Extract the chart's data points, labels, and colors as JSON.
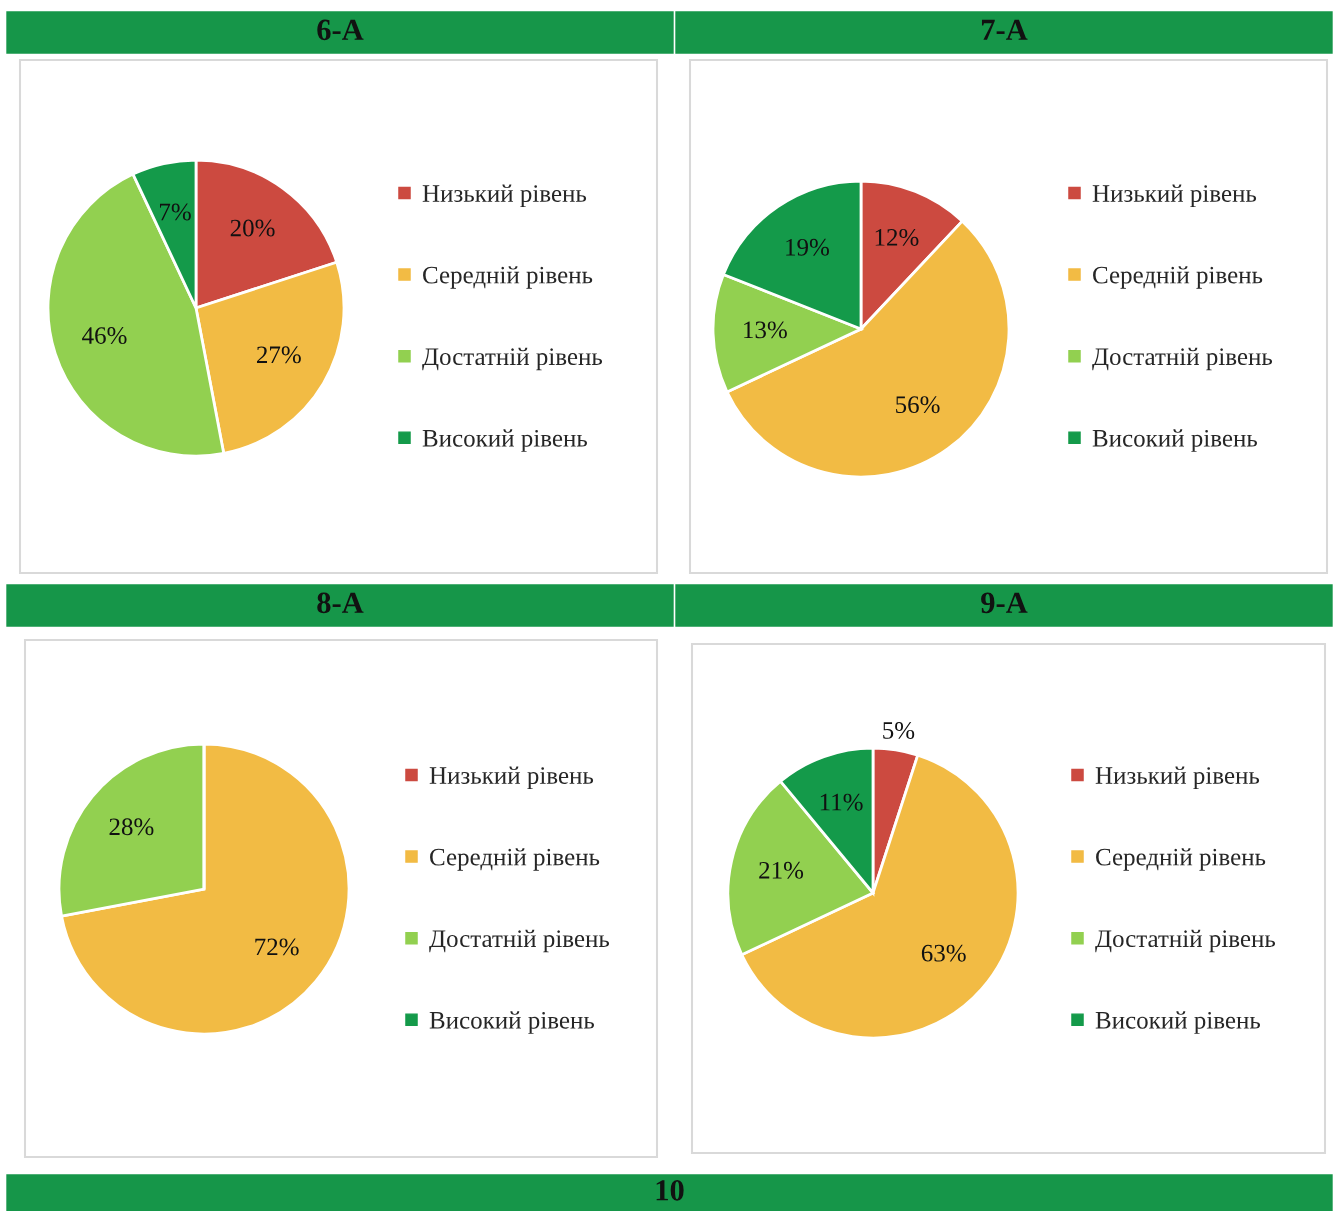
{
  "chart_data": [
    {
      "type": "pie",
      "title": "6-А",
      "categories": [
        "Низький рівень",
        "Середній рівень",
        "Достатній рівень",
        "Високий рівень"
      ],
      "values": [
        20,
        27,
        46,
        7
      ],
      "value_labels": [
        "20%",
        "27%",
        "46%",
        "7%"
      ],
      "colors": [
        "#cc4a40",
        "#f2bb44",
        "#92d050",
        "#149a4a"
      ],
      "legend": "right"
    },
    {
      "type": "pie",
      "title": "7-А",
      "categories": [
        "Низький рівень",
        "Середній рівень",
        "Достатній рівень",
        "Високий рівень"
      ],
      "values": [
        12,
        56,
        13,
        19
      ],
      "value_labels": [
        "12%",
        "56%",
        "13%",
        "19%"
      ],
      "colors": [
        "#cc4a40",
        "#f2bb44",
        "#92d050",
        "#149a4a"
      ],
      "legend": "right"
    },
    {
      "type": "pie",
      "title": "8-А",
      "categories": [
        "Низький рівень",
        "Середній рівень",
        "Достатній рівень",
        "Високий рівень"
      ],
      "values": [
        0,
        72,
        28,
        0
      ],
      "value_labels": [
        null,
        "72%",
        "28%",
        null
      ],
      "colors": [
        "#cc4a40",
        "#f2bb44",
        "#92d050",
        "#149a4a"
      ],
      "legend": "right"
    },
    {
      "type": "pie",
      "title": "9-А",
      "categories": [
        "Низький рівень",
        "Середній рівень",
        "Достатній рівень",
        "Високий рівень"
      ],
      "values": [
        5,
        63,
        21,
        11
      ],
      "value_labels": [
        "5%",
        "63%",
        "21%",
        "11%"
      ],
      "colors": [
        "#cc4a40",
        "#f2bb44",
        "#92d050",
        "#149a4a"
      ],
      "legend": "right"
    },
    {
      "type": "other",
      "title": "10"
    }
  ]
}
